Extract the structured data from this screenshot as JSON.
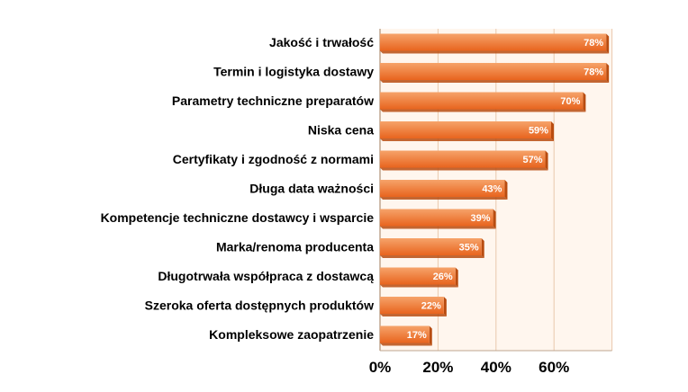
{
  "chart_data": {
    "type": "bar",
    "orientation": "horizontal",
    "categories": [
      "Jakość i trwałość",
      "Termin i logistyka dostawy",
      "Parametry techniczne preparatów",
      "Niska cena",
      "Certyfikaty i zgodność z normami",
      "Długa data ważności",
      "Kompetencje techniczne dostawcy i wsparcie",
      "Marka/renoma producenta",
      "Długotrwała współpraca z dostawcą",
      "Szeroka oferta dostępnych produktów",
      "Kompleksowe zaopatrzenie"
    ],
    "values": [
      78,
      78,
      70,
      59,
      57,
      43,
      39,
      35,
      26,
      22,
      17
    ],
    "value_labels": [
      "78%",
      "78%",
      "70%",
      "59%",
      "57%",
      "43%",
      "39%",
      "35%",
      "26%",
      "22%",
      "17%"
    ],
    "xlim": [
      0,
      80
    ],
    "x_ticks": [
      0,
      20,
      40,
      60
    ],
    "x_tick_labels": [
      "0%",
      "20%",
      "40%",
      "60%"
    ],
    "grid": "vertical",
    "legend": "none",
    "title": "",
    "xlabel": "",
    "ylabel": "",
    "colors": {
      "bar_light": "#f6a36a",
      "bar_dark": "#e8641e",
      "bar_side": "#b84c10",
      "plot_bg": "#fff6ee",
      "grid": "#e9c9ad",
      "axis": "#bfa58f"
    }
  }
}
